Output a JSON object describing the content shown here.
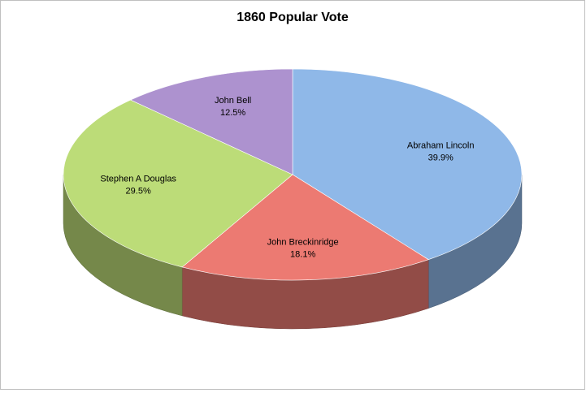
{
  "chart_data": {
    "type": "pie",
    "title": "1860 Popular Vote",
    "categories": [
      "Abraham Lincoln",
      "John Breckinridge",
      "Stephen A Douglas",
      "John Bell"
    ],
    "values": [
      39.9,
      18.1,
      29.5,
      12.5
    ],
    "value_labels": [
      "39.9%",
      "18.1%",
      "29.5%",
      "12.5%"
    ],
    "colors": [
      "#8fb8e8",
      "#ec7a72",
      "#bcdc78",
      "#ad92cf"
    ]
  }
}
